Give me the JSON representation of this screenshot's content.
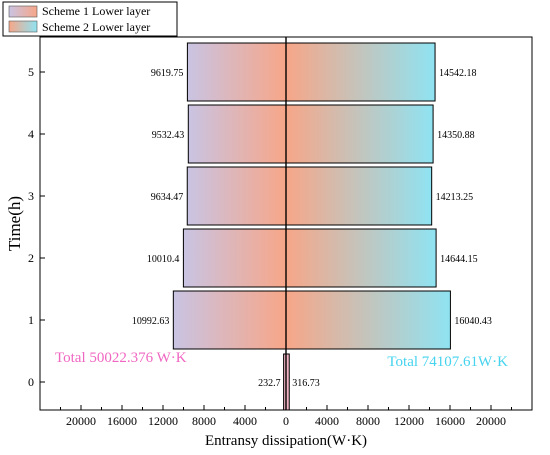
{
  "chart_data": {
    "type": "bar",
    "orientation": "horizontal-diverging",
    "title": "",
    "xlabel": "Entransy dissipation(W·K)",
    "ylabel": "Time(h)",
    "categories": [
      "0",
      "1",
      "2",
      "3",
      "4",
      "5"
    ],
    "xlim": [
      -24000,
      24000
    ],
    "xticks": [
      -20000,
      -16000,
      -12000,
      -8000,
      -4000,
      0,
      4000,
      8000,
      12000,
      16000,
      20000
    ],
    "xtick_labels": [
      "20000",
      "16000",
      "12000",
      "8000",
      "4000",
      "0",
      "4000",
      "8000",
      "12000",
      "16000",
      "20000"
    ],
    "series": [
      {
        "name": "Scheme 1 Lower layer",
        "side": "left",
        "values": [
          232.7,
          10992.63,
          10010.4,
          9634.47,
          9532.43,
          9619.75
        ],
        "labels": [
          "232.7",
          "10992.63",
          "10010.4",
          "9634.47",
          "9532.43",
          "9619.75"
        ],
        "gradient": [
          "#c9c4e3",
          "#f7a688"
        ]
      },
      {
        "name": "Scheme 2 Lower layer",
        "side": "right",
        "values": [
          316.73,
          16040.43,
          14644.15,
          14213.25,
          14350.88,
          14542.18
        ],
        "labels": [
          "316.73",
          "16040.43",
          "14644.15",
          "14213.25",
          "14350.88",
          "14542.18"
        ],
        "gradient": [
          "#f7a688",
          "#8fe3f2"
        ]
      }
    ],
    "annotations": [
      {
        "text": "Total  50022.376 W·K",
        "color": "#f067c2"
      },
      {
        "text": "Total  74107.61W·K",
        "color": "#45d3ee"
      }
    ],
    "legend_position": "top-left-outside",
    "grid": false
  }
}
